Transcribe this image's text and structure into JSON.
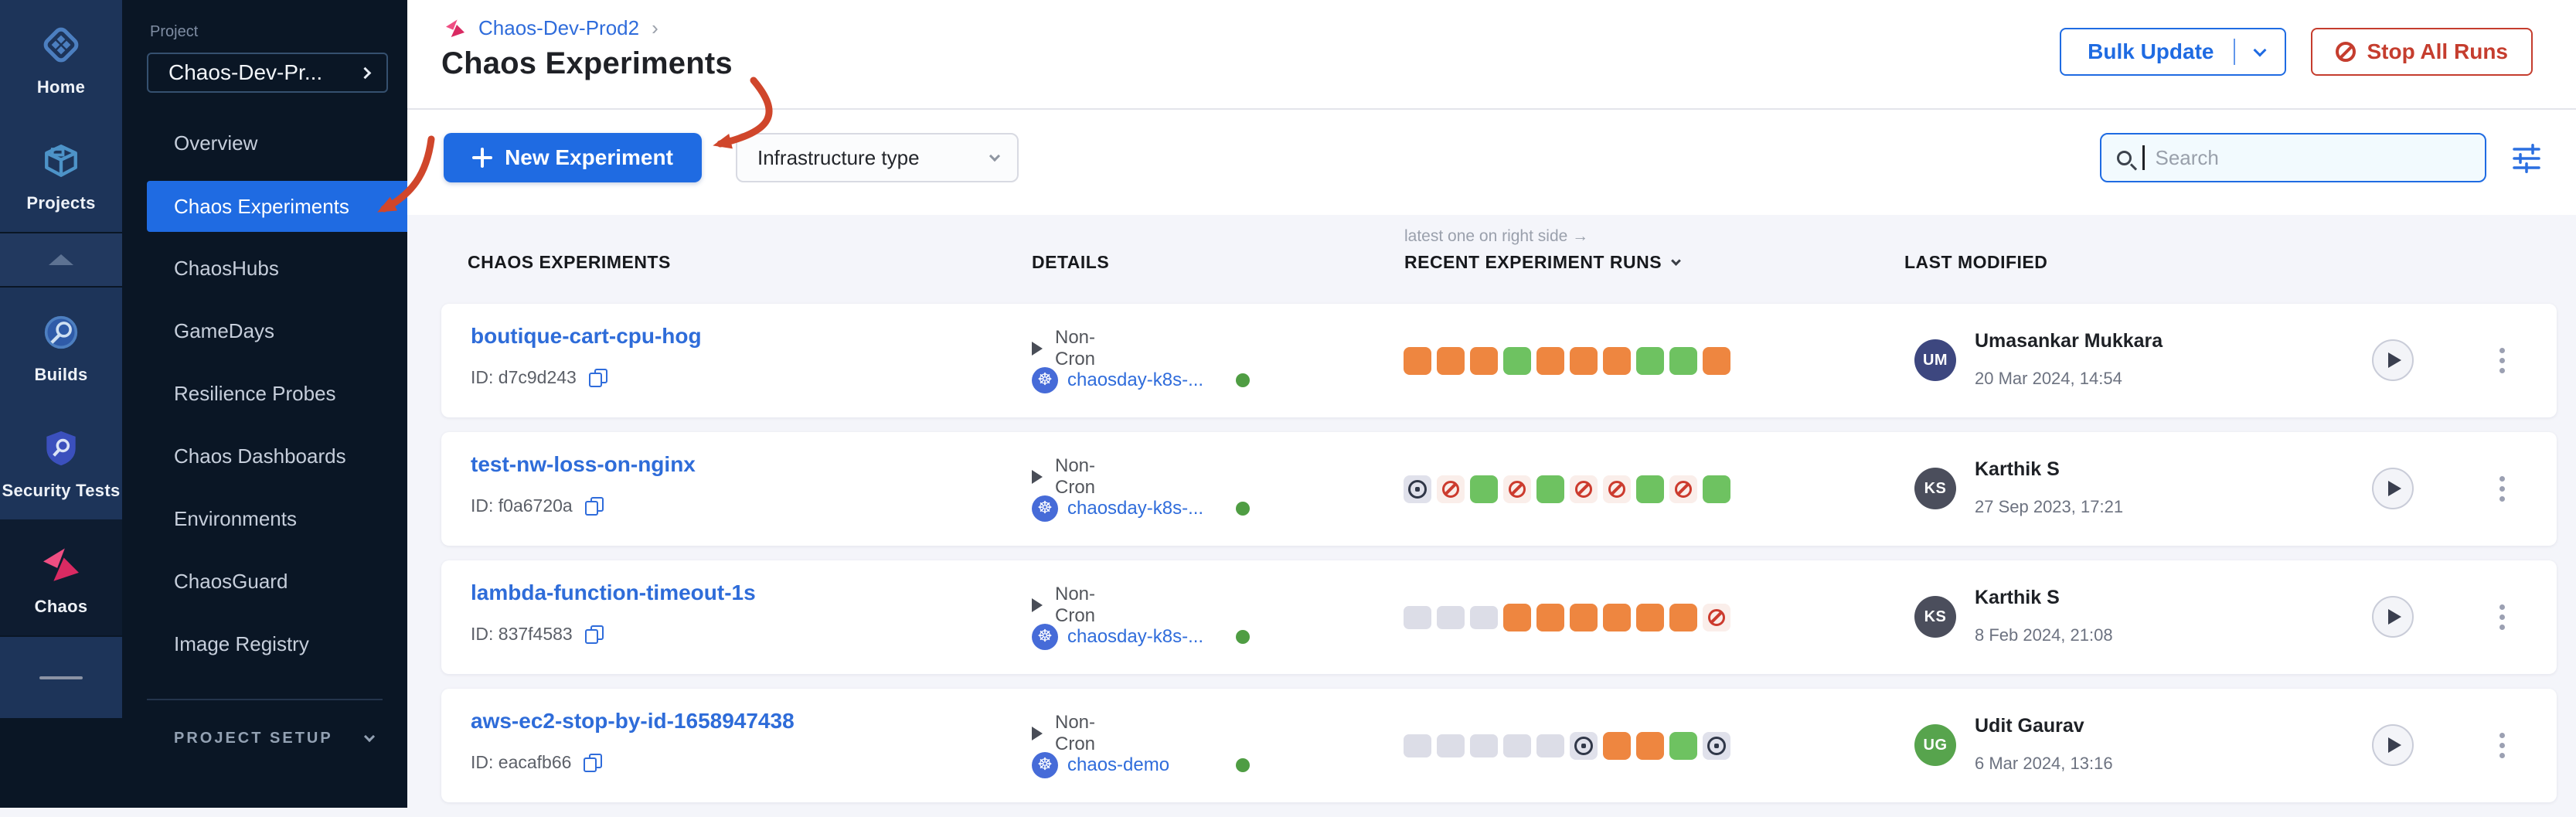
{
  "colors": {
    "accent": "#1f6be2",
    "link": "#2f6cdb",
    "danger": "#c53d2e",
    "annotation_arrow": "#d0462b",
    "run_orange": "#ee8640",
    "run_green": "#6ec261",
    "run_error": "#cc3b2e",
    "run_stopped": "#303748",
    "infra_status_dot": "#4f9d43"
  },
  "nav_rail": {
    "items": [
      {
        "label": "Home",
        "icon": "home-icon",
        "selected": false
      },
      {
        "label": "Projects",
        "icon": "projects-icon",
        "selected": false
      },
      {
        "label": "Builds",
        "icon": "builds-icon",
        "selected": false
      },
      {
        "label": "Security Tests",
        "icon": "security-tests-icon",
        "selected": false
      },
      {
        "label": "Chaos",
        "icon": "chaos-icon",
        "selected": true
      }
    ]
  },
  "sidebar": {
    "project_label": "Project",
    "project_name": "Chaos-Dev-Pr...",
    "menu": [
      "Overview",
      "Chaos Experiments",
      "ChaosHubs",
      "GameDays",
      "Resilience Probes",
      "Chaos Dashboards",
      "Environments",
      "ChaosGuard",
      "Image Registry"
    ],
    "selected_item": "Chaos Experiments",
    "project_setup_label": "PROJECT SETUP"
  },
  "header": {
    "breadcrumb": "Chaos-Dev-Prod2",
    "breadcrumb_sep": "›",
    "title": "Chaos Experiments",
    "bulk_update": "Bulk Update",
    "stop_all_runs": "Stop All Runs"
  },
  "toolbar": {
    "new_experiment": "New Experiment",
    "infrastructure_type": "Infrastructure type",
    "search_placeholder": "Search"
  },
  "table": {
    "runs_hint": "latest one on right side →",
    "columns": [
      "CHAOS EXPERIMENTS",
      "DETAILS",
      "RECENT EXPERIMENT RUNS",
      "LAST MODIFIED"
    ],
    "rows": [
      {
        "name": "boutique-cart-cpu-hog",
        "id_label": "ID: d7c9d243",
        "schedule": "Non-Cron",
        "infra": "chaosday-k8s-...",
        "runs": [
          "orange",
          "orange",
          "orange",
          "green",
          "orange",
          "orange",
          "orange",
          "green",
          "green",
          "orange"
        ],
        "user": {
          "name": "Umasankar Mukkara",
          "initials": "UM",
          "color": "#3d477f"
        },
        "date": "20 Mar 2024, 14:54"
      },
      {
        "name": "test-nw-loss-on-nginx",
        "id_label": "ID: f0a6720a",
        "schedule": "Non-Cron",
        "infra": "chaosday-k8s-...",
        "runs": [
          "stopped",
          "error",
          "green",
          "error",
          "green",
          "error",
          "error",
          "green",
          "error",
          "green"
        ],
        "user": {
          "name": "Karthik S",
          "initials": "KS",
          "color": "#4b4e5c"
        },
        "date": "27 Sep 2023, 17:21"
      },
      {
        "name": "lambda-function-timeout-1s",
        "id_label": "ID: 837f4583",
        "schedule": "Non-Cron",
        "infra": "chaosday-k8s-...",
        "runs": [
          "empty",
          "empty",
          "empty",
          "orange",
          "orange",
          "orange",
          "orange",
          "orange",
          "orange",
          "error"
        ],
        "user": {
          "name": "Karthik S",
          "initials": "KS",
          "color": "#4b4e5c"
        },
        "date": "8 Feb 2024, 21:08"
      },
      {
        "name": "aws-ec2-stop-by-id-1658947438",
        "id_label": "ID: eacafb66",
        "schedule": "Non-Cron",
        "infra": "chaos-demo",
        "runs": [
          "empty",
          "empty",
          "empty",
          "empty",
          "empty",
          "stopped",
          "orange",
          "orange",
          "green",
          "stopped"
        ],
        "user": {
          "name": "Udit Gaurav",
          "initials": "UG",
          "color": "#57a44d"
        },
        "date": "6 Mar 2024, 13:16"
      }
    ]
  }
}
